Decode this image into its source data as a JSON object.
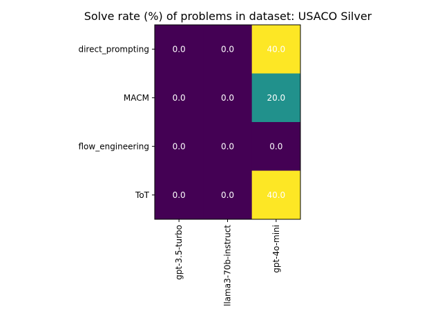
{
  "chart_data": {
    "type": "heatmap",
    "title": "Solve rate (%) of problems in dataset: USACO Silver",
    "rows": [
      "direct_prompting",
      "MACM",
      "flow_engineering",
      "ToT"
    ],
    "columns": [
      "gpt-3.5-turbo",
      "llama3-70b-instruct",
      "gpt-4o-mini"
    ],
    "values": [
      [
        0.0,
        0.0,
        40.0
      ],
      [
        0.0,
        0.0,
        20.0
      ],
      [
        0.0,
        0.0,
        0.0
      ],
      [
        0.0,
        0.0,
        40.0
      ]
    ],
    "value_labels": [
      [
        "0.0",
        "0.0",
        "40.0"
      ],
      [
        "0.0",
        "0.0",
        "20.0"
      ],
      [
        "0.0",
        "0.0",
        "0.0"
      ],
      [
        "0.0",
        "0.0",
        "40.0"
      ]
    ],
    "colormap": "viridis",
    "vmin": 0,
    "vmax": 40,
    "colors": {
      "low": "#440154",
      "mid": "#21918c",
      "high": "#fde725"
    }
  }
}
